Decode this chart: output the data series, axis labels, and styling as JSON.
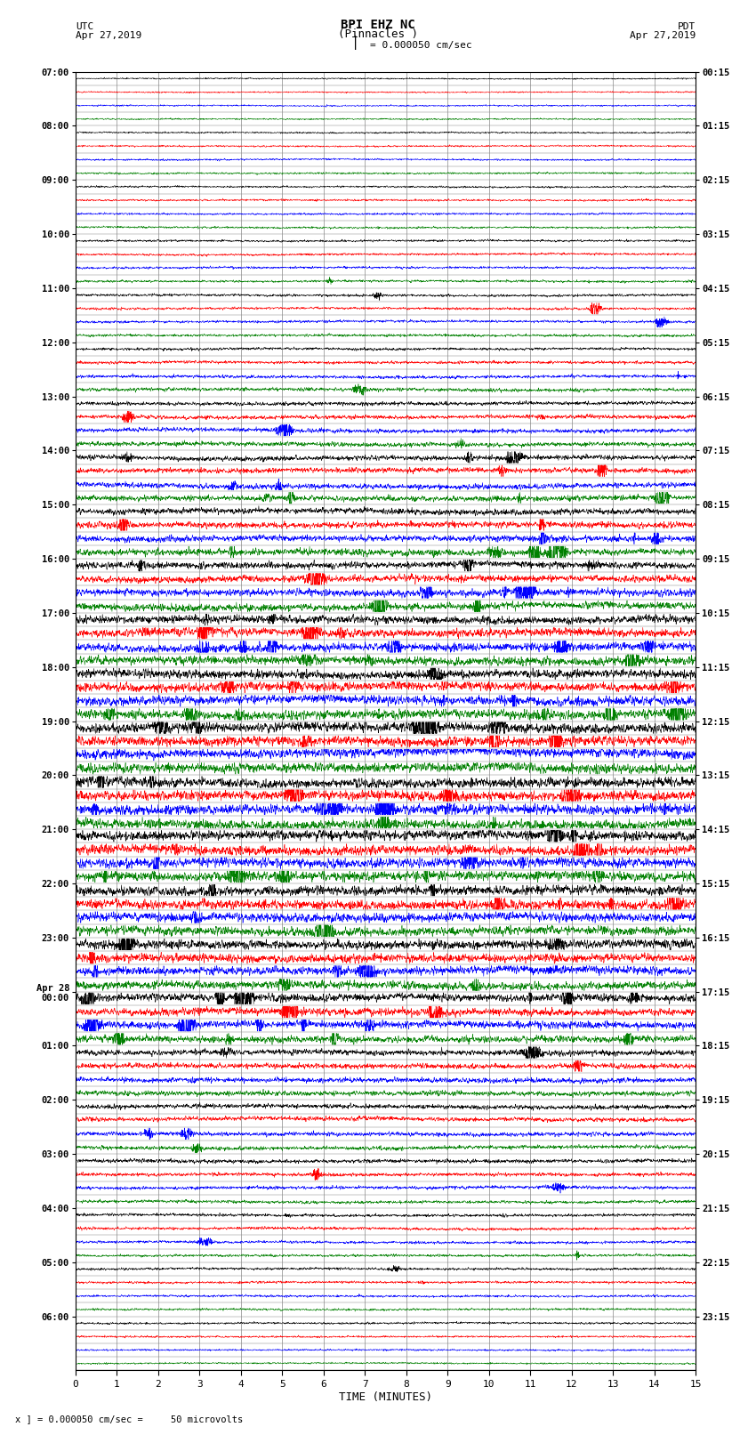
{
  "title_line1": "BPI EHZ NC",
  "title_line2": "(Pinnacles )",
  "scale_label": "I = 0.000050 cm/sec",
  "left_timezone": "UTC",
  "left_date": "Apr 27,2019",
  "right_timezone": "PDT",
  "right_date": "Apr 27,2019",
  "bottom_label": "TIME (MINUTES)",
  "bottom_note": "x ] = 0.000050 cm/sec =     50 microvolts",
  "xlabel_ticks": [
    0,
    1,
    2,
    3,
    4,
    5,
    6,
    7,
    8,
    9,
    10,
    11,
    12,
    13,
    14,
    15
  ],
  "utc_labels": [
    "07:00",
    "",
    "",
    "",
    "08:00",
    "",
    "",
    "",
    "09:00",
    "",
    "",
    "",
    "10:00",
    "",
    "",
    "",
    "11:00",
    "",
    "",
    "",
    "12:00",
    "",
    "",
    "",
    "13:00",
    "",
    "",
    "",
    "14:00",
    "",
    "",
    "",
    "15:00",
    "",
    "",
    "",
    "16:00",
    "",
    "",
    "",
    "17:00",
    "",
    "",
    "",
    "18:00",
    "",
    "",
    "",
    "19:00",
    "",
    "",
    "",
    "20:00",
    "",
    "",
    "",
    "21:00",
    "",
    "",
    "",
    "22:00",
    "",
    "",
    "",
    "23:00",
    "",
    "",
    "",
    "Apr 28\n00:00",
    "",
    "",
    "",
    "01:00",
    "",
    "",
    "",
    "02:00",
    "",
    "",
    "",
    "03:00",
    "",
    "",
    "",
    "04:00",
    "",
    "",
    "",
    "05:00",
    "",
    "",
    "",
    "06:00",
    "",
    "",
    ""
  ],
  "pdt_labels": [
    "00:15",
    "",
    "",
    "",
    "01:15",
    "",
    "",
    "",
    "02:15",
    "",
    "",
    "",
    "03:15",
    "",
    "",
    "",
    "04:15",
    "",
    "",
    "",
    "05:15",
    "",
    "",
    "",
    "06:15",
    "",
    "",
    "",
    "07:15",
    "",
    "",
    "",
    "08:15",
    "",
    "",
    "",
    "09:15",
    "",
    "",
    "",
    "10:15",
    "",
    "",
    "",
    "11:15",
    "",
    "",
    "",
    "12:15",
    "",
    "",
    "",
    "13:15",
    "",
    "",
    "",
    "14:15",
    "",
    "",
    "",
    "15:15",
    "",
    "",
    "",
    "16:15",
    "",
    "",
    "",
    "17:15",
    "",
    "",
    "",
    "18:15",
    "",
    "",
    "",
    "19:15",
    "",
    "",
    "",
    "20:15",
    "",
    "",
    "",
    "21:15",
    "",
    "",
    "",
    "22:15",
    "",
    "",
    "",
    "23:15",
    "",
    "",
    ""
  ],
  "num_rows": 96,
  "row_colors": [
    "black",
    "red",
    "blue",
    "green"
  ],
  "bg_color": "white",
  "plot_bg": "white",
  "vgrid_color": "#888888",
  "hgrid_color": "#888888",
  "fig_width": 8.5,
  "fig_height": 16.13,
  "dpi": 100
}
